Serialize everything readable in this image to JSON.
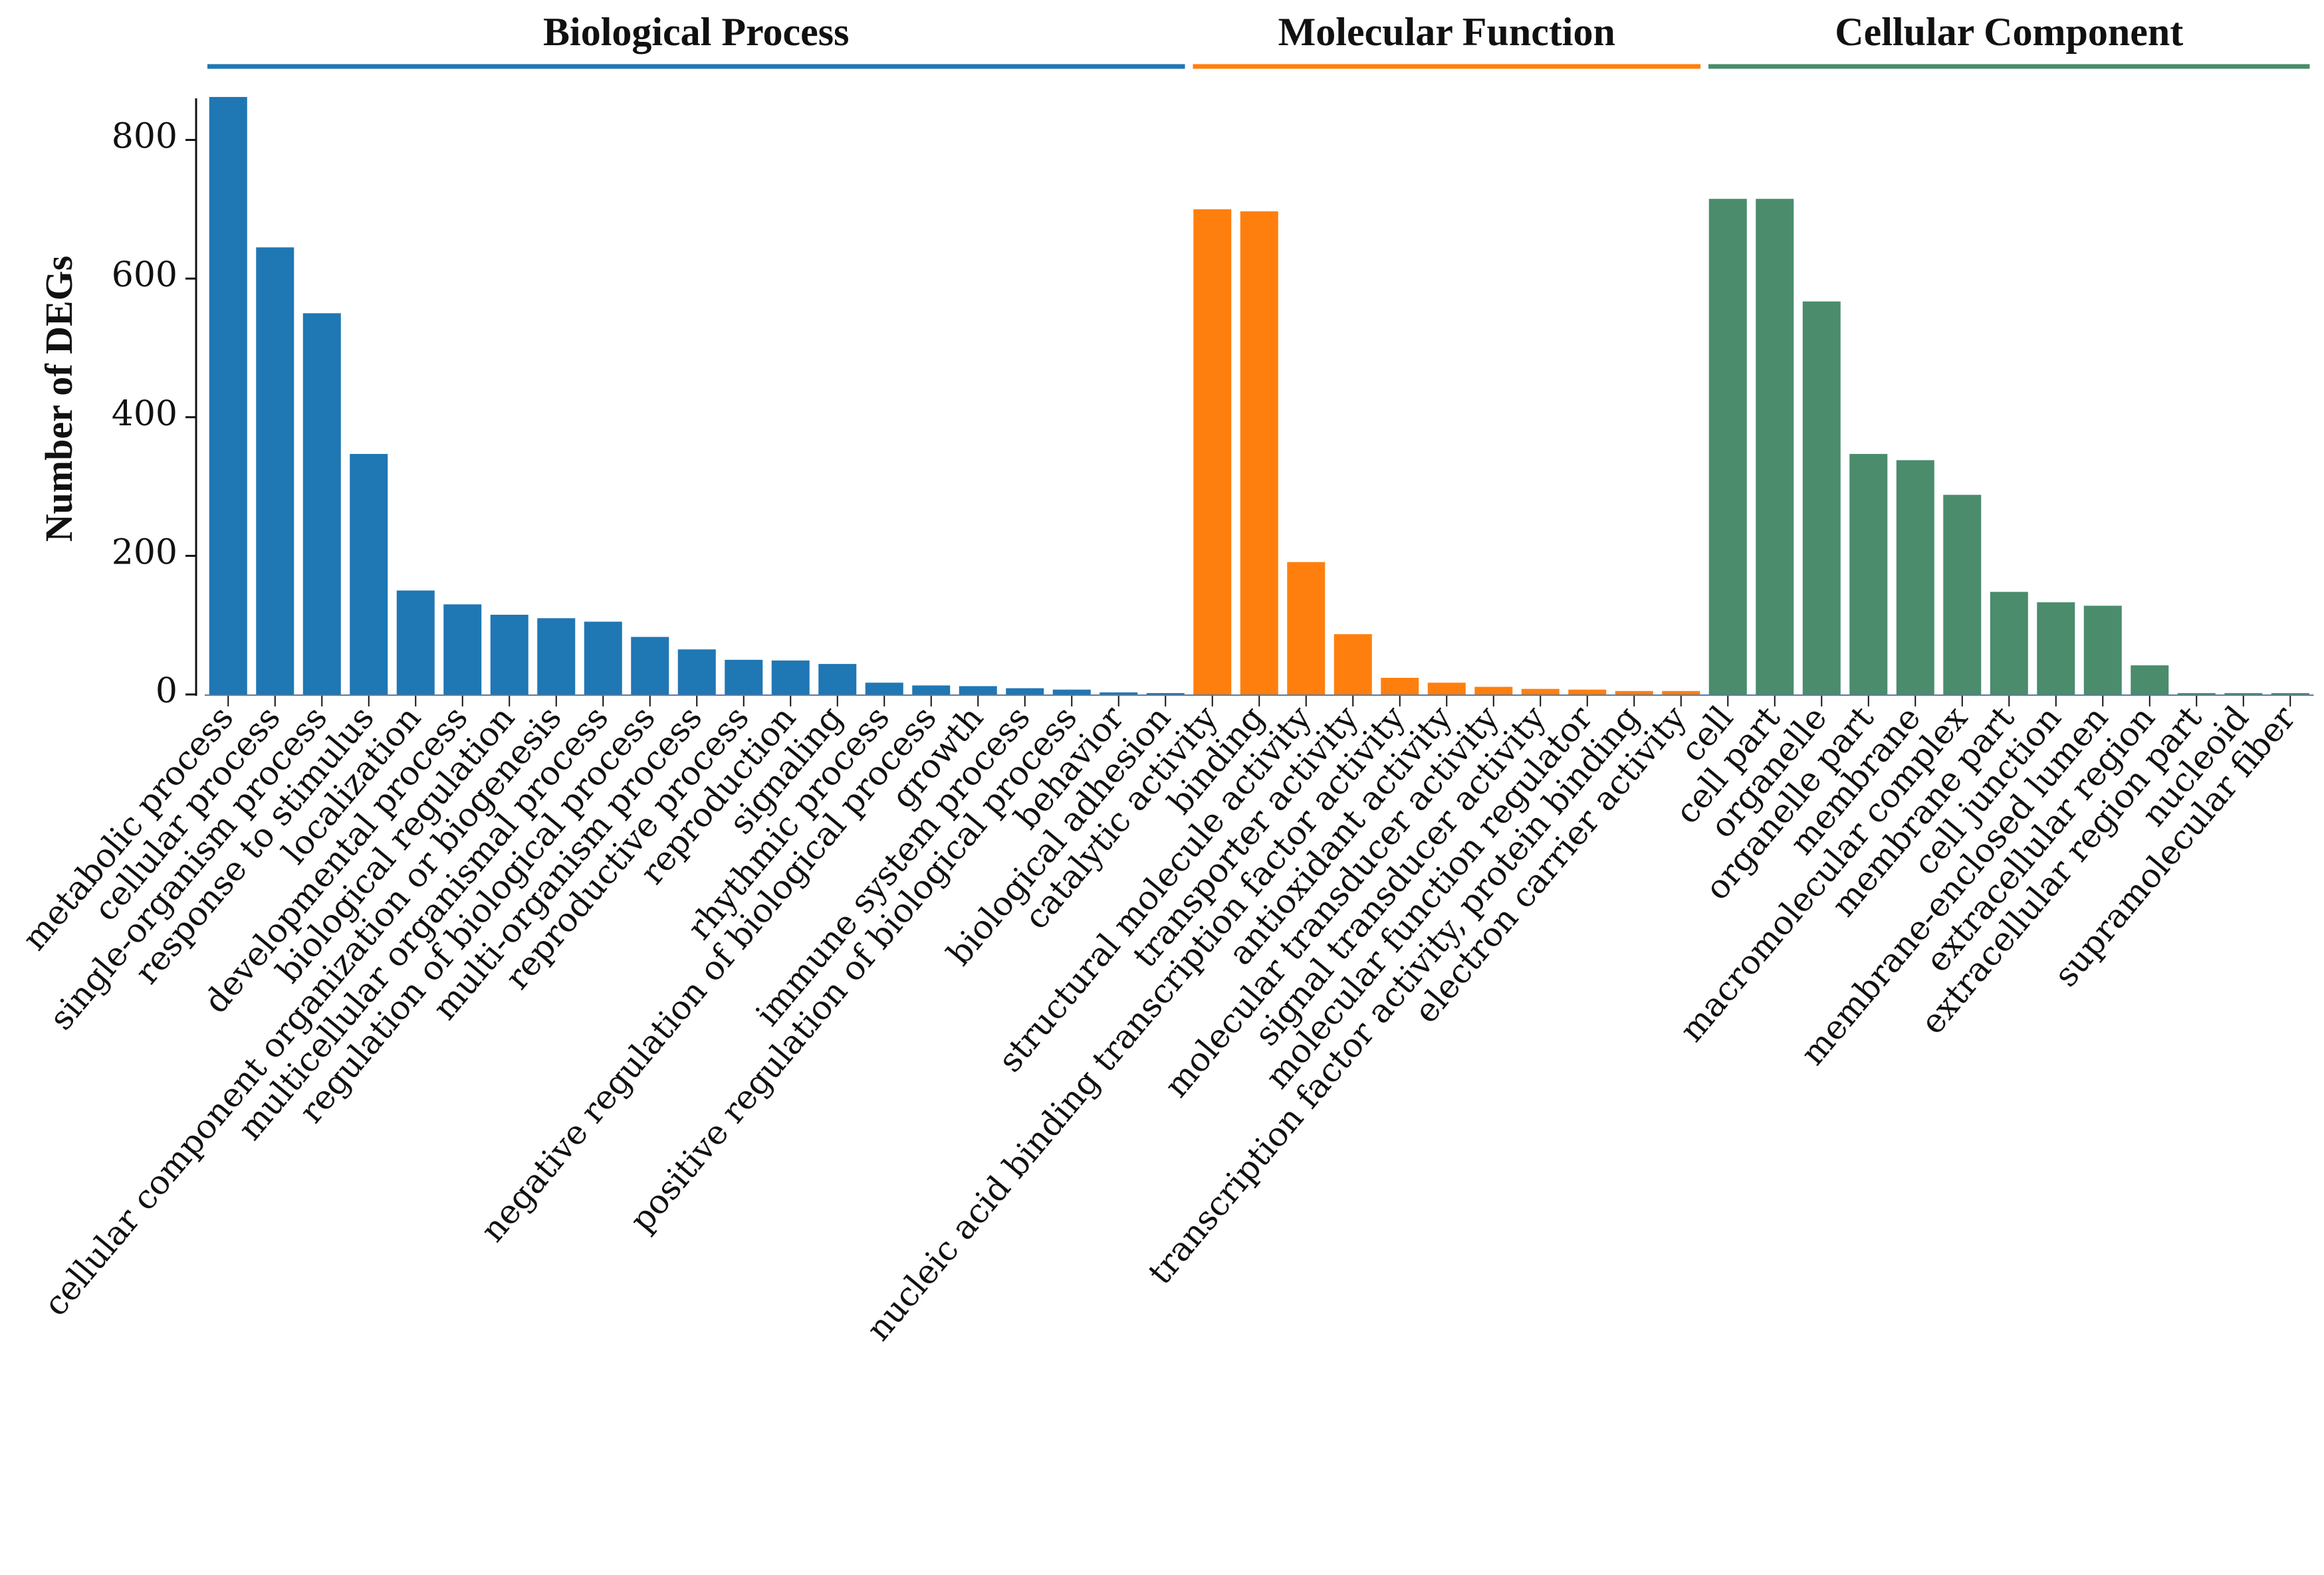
{
  "chart_data": {
    "type": "bar",
    "title": "",
    "xlabel": "",
    "ylabel": "Number of DEGs",
    "ylim": [
      0,
      860
    ],
    "yticks": [
      0,
      200,
      400,
      600,
      800
    ],
    "grid": false,
    "groups": [
      {
        "name": "Biological Process",
        "color": "#1f77b4",
        "categories": [
          "metabolic process",
          "cellular process",
          "single-organism process",
          "response to stimulus",
          "localization",
          "developmental process",
          "biological regulation",
          "cellular component organization or biogenesis",
          "multicellular organismal process",
          "regulation of biological process",
          "multi-organism process",
          "reproductive process",
          "reproduction",
          "signaling",
          "rhythmic process",
          "negative regulation of biological process",
          "growth",
          "immune system process",
          "positive regulation of biological process",
          "behavior",
          "biological adhesion"
        ],
        "values": [
          862,
          645,
          550,
          347,
          150,
          130,
          115,
          110,
          105,
          83,
          65,
          50,
          49,
          44,
          17,
          13,
          12,
          9,
          7,
          3,
          2
        ]
      },
      {
        "name": "Molecular Function",
        "color": "#ff7f0e",
        "categories": [
          "catalytic activity",
          "binding",
          "structural molecule activity",
          "transporter activity",
          "nucleic acid binding transcription factor activity",
          "antioxidant activity",
          "molecular transducer activity",
          "signal transducer activity",
          "molecular function regulator",
          "transcription factor activity, protein binding",
          "electron carrier activity"
        ],
        "values": [
          700,
          697,
          191,
          87,
          24,
          17,
          11,
          8,
          7,
          5,
          5
        ]
      },
      {
        "name": "Cellular Component",
        "color": "#4a8c6c",
        "categories": [
          "cell",
          "cell part",
          "organelle",
          "organelle part",
          "membrane",
          "macromolecular complex",
          "membrane part",
          "cell junction",
          "membrane-enclosed lumen",
          "extracellular region",
          "extracellular region part",
          "nucleoid",
          "supramolecular fiber"
        ],
        "values": [
          715,
          715,
          567,
          347,
          338,
          288,
          148,
          133,
          128,
          42,
          2,
          2,
          2
        ]
      }
    ]
  }
}
